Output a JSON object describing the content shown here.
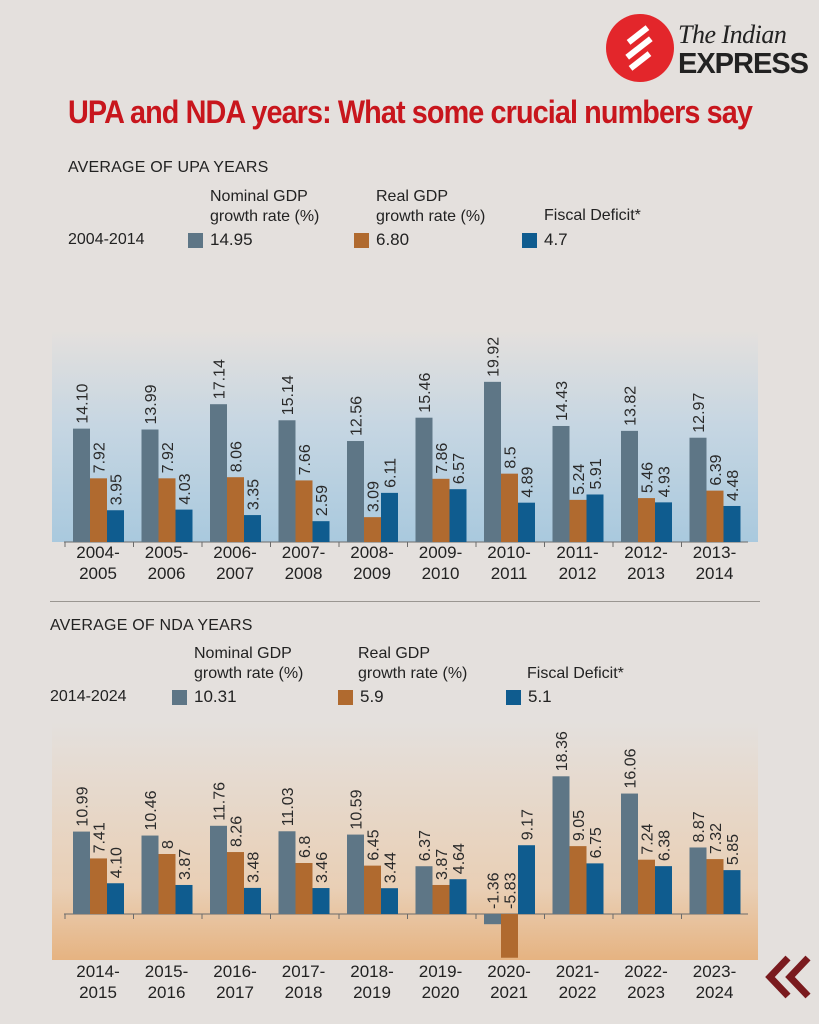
{
  "brand": {
    "name_line1": "The Indian",
    "name_line2": "EXPRESS",
    "logo_color": "#e3262b"
  },
  "headline": "UPA and NDA years: What some crucial numbers say",
  "colors": {
    "nominal": "#5e7686",
    "real": "#b06a2f",
    "fiscal": "#0f5c8f",
    "headline": "#c8161d"
  },
  "upa": {
    "section_title": "AVERAGE OF UPA YEARS",
    "period": "2004-2014",
    "legend": [
      {
        "label": "Nominal GDP growth rate (%)",
        "line1": "Nominal GDP",
        "line2": "growth rate (%)",
        "value": "14.95"
      },
      {
        "label": "Real GDP growth rate (%)",
        "line1": "Real GDP",
        "line2": "growth rate (%)",
        "value": "6.80"
      },
      {
        "label": "Fiscal Deficit*",
        "line1": "Fiscal Deficit*",
        "line2": "",
        "value": "4.7"
      }
    ]
  },
  "nda": {
    "section_title": "AVERAGE OF NDA YEARS",
    "period": "2014-2024",
    "legend": [
      {
        "label": "Nominal GDP growth rate (%)",
        "line1": "Nominal GDP",
        "line2": "growth rate (%)",
        "value": "10.31"
      },
      {
        "label": "Real GDP growth rate (%)",
        "line1": "Real GDP",
        "line2": "growth rate (%)",
        "value": "5.9"
      },
      {
        "label": "Fiscal Deficit*",
        "line1": "Fiscal Deficit*",
        "line2": "",
        "value": "5.1"
      }
    ]
  },
  "chart_data": [
    {
      "type": "bar",
      "title": "AVERAGE OF UPA YEARS",
      "categories": [
        "2004-\n2005",
        "2005-\n2006",
        "2006-\n2007",
        "2007-\n2008",
        "2008-\n2009",
        "2009-\n2010",
        "2010-\n2011",
        "2011-\n2012",
        "2012-\n2013",
        "2013-\n2014"
      ],
      "series": [
        {
          "name": "Nominal GDP growth rate (%)",
          "values": [
            14.1,
            13.99,
            17.14,
            15.14,
            12.56,
            15.46,
            19.92,
            14.43,
            13.82,
            12.97
          ],
          "labels": [
            "14.10",
            "13.99",
            "17.14",
            "15.14",
            "12.56",
            "15.46",
            "19.92",
            "14.43",
            "13.82",
            "12.97"
          ]
        },
        {
          "name": "Real GDP growth rate (%)",
          "values": [
            7.92,
            7.92,
            8.06,
            7.66,
            3.09,
            7.86,
            8.5,
            5.24,
            5.46,
            6.39
          ],
          "labels": [
            "7.92",
            "7.92",
            "8.06",
            "7.66",
            "3.09",
            "7.86",
            "8.5",
            "5.24",
            "5.46",
            "6.39"
          ]
        },
        {
          "name": "Fiscal Deficit*",
          "values": [
            3.95,
            4.03,
            3.35,
            2.59,
            6.11,
            6.57,
            4.89,
            5.91,
            4.93,
            4.48
          ],
          "labels": [
            "3.95",
            "4.03",
            "3.35",
            "2.59",
            "6.11",
            "6.57",
            "4.89",
            "5.91",
            "4.93",
            "4.48"
          ]
        }
      ],
      "xlabel": "",
      "ylabel": "",
      "ylim": [
        0,
        20
      ]
    },
    {
      "type": "bar",
      "title": "AVERAGE OF NDA YEARS",
      "categories": [
        "2014-\n2015",
        "2015-\n2016",
        "2016-\n2017",
        "2017-\n2018",
        "2018-\n2019",
        "2019-\n2020",
        "2020-\n2021",
        "2021-\n2022",
        "2022-\n2023",
        "2023-\n2024"
      ],
      "series": [
        {
          "name": "Nominal GDP growth rate (%)",
          "values": [
            10.99,
            10.46,
            11.76,
            11.03,
            10.59,
            6.37,
            -1.36,
            18.36,
            16.06,
            8.87
          ],
          "labels": [
            "10.99",
            "10.46",
            "11.76",
            "11.03",
            "10.59",
            "6.37",
            "-1.36",
            "18.36",
            "16.06",
            "8.87"
          ]
        },
        {
          "name": "Real GDP growth rate (%)",
          "values": [
            7.41,
            8,
            8.26,
            6.8,
            6.45,
            3.87,
            -5.83,
            9.05,
            7.24,
            7.32
          ],
          "labels": [
            "7.41",
            "8",
            "8.26",
            "6.8",
            "6.45",
            "3.87",
            "-5.83",
            "9.05",
            "7.24",
            "7.32"
          ]
        },
        {
          "name": "Fiscal Deficit*",
          "values": [
            4.1,
            3.87,
            3.48,
            3.46,
            3.44,
            4.64,
            9.17,
            6.75,
            6.38,
            5.85
          ],
          "labels": [
            "4.10",
            "3.87",
            "3.48",
            "3.46",
            "3.44",
            "4.64",
            "9.17",
            "6.75",
            "6.38",
            "5.85"
          ]
        }
      ],
      "xlabel": "",
      "ylabel": "",
      "ylim": [
        -6,
        20
      ]
    }
  ]
}
